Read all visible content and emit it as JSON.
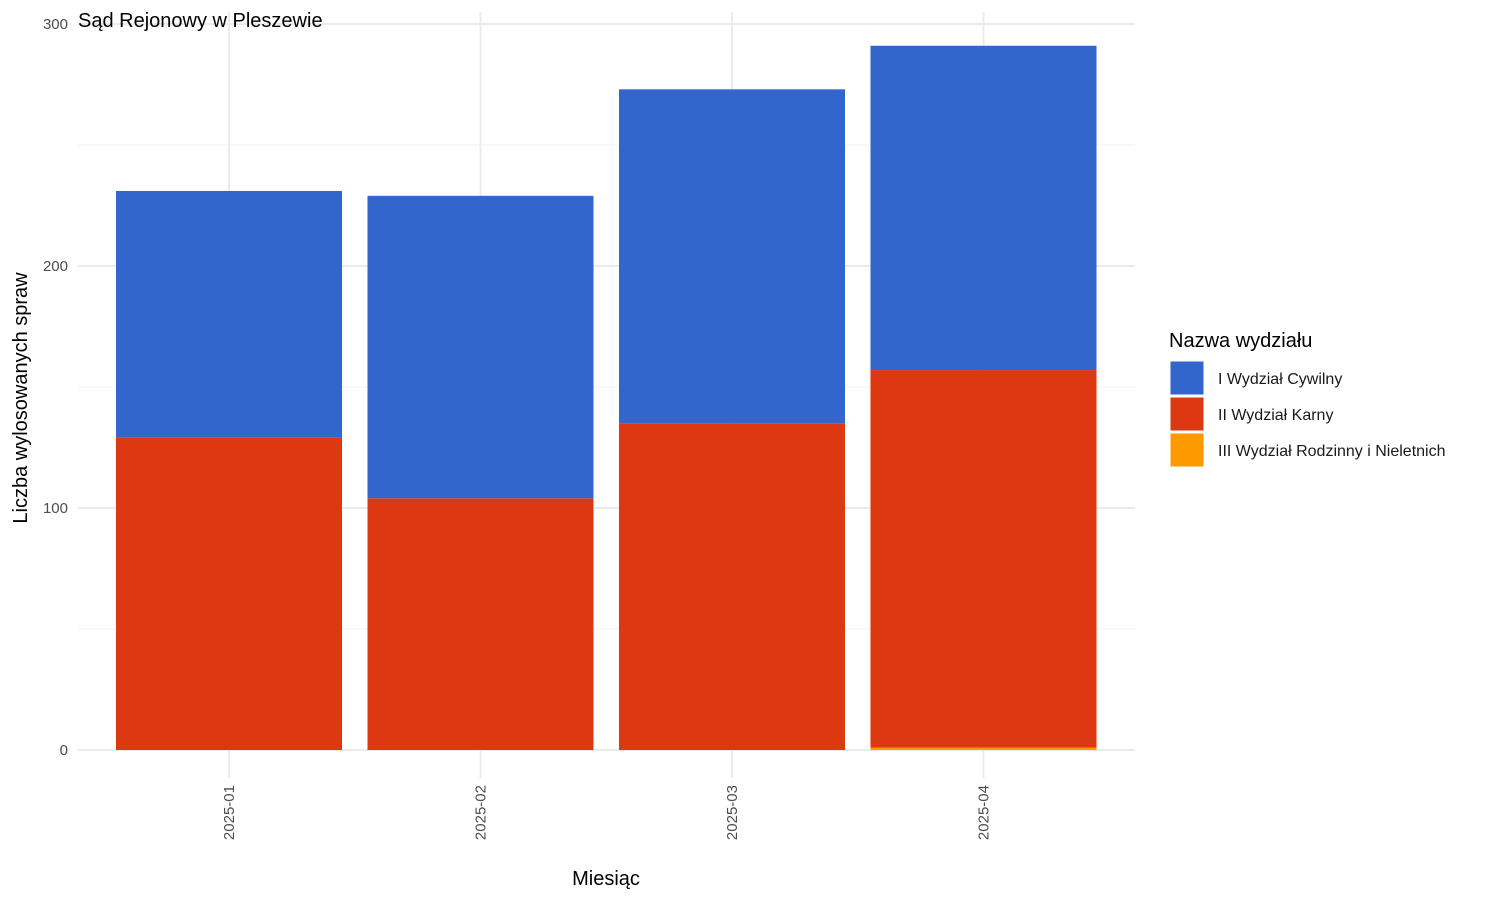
{
  "chart_data": {
    "type": "bar",
    "stacked": true,
    "title": "Sąd Rejonowy w Pleszewie",
    "xlabel": "Miesiąc",
    "ylabel": "Liczba wylosowanych spraw",
    "categories": [
      "2025-01",
      "2025-02",
      "2025-03",
      "2025-04"
    ],
    "ylim": [
      0,
      300
    ],
    "yticks": [
      0,
      100,
      200,
      300
    ],
    "grid": true,
    "legend": {
      "title": "Nazwa wydziału",
      "position": "right"
    },
    "series": [
      {
        "name": "I Wydział Cywilny",
        "color": "#3366CC",
        "values": [
          102,
          125,
          138,
          134
        ]
      },
      {
        "name": "II Wydział Karny",
        "color": "#DC3912",
        "values": [
          129,
          104,
          135,
          156
        ]
      },
      {
        "name": "III Wydział Rodzinny i Nieletnich",
        "color": "#FF9900",
        "values": [
          0,
          0,
          0,
          1
        ]
      }
    ],
    "stack_order": [
      "III Wydział Rodzinny i Nieletnich",
      "II Wydział Karny",
      "I Wydział Cywilny"
    ]
  }
}
